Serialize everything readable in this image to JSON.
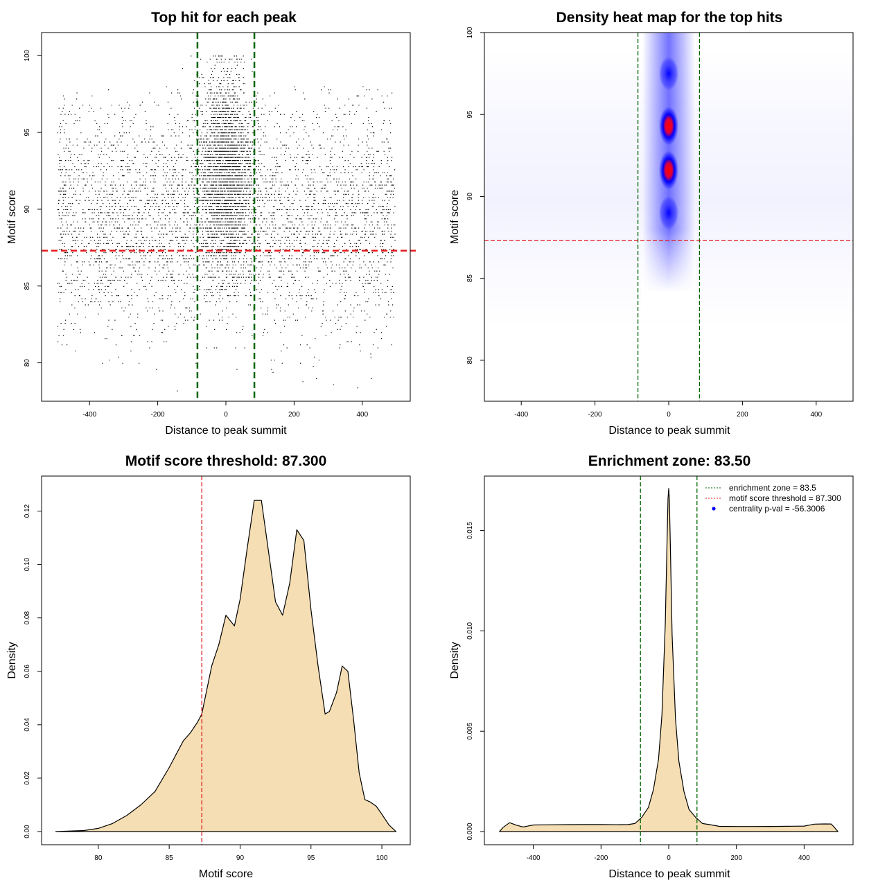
{
  "chart_data": [
    {
      "type": "scatter",
      "title": "Top hit for each peak",
      "xlabel": "Distance to peak summit",
      "ylabel": "Motif score",
      "xlim": [
        -500,
        500
      ],
      "ylim": [
        77.5,
        101.5
      ],
      "xticks": [
        -400,
        -200,
        0,
        200,
        400
      ],
      "yticks": [
        80,
        85,
        90,
        95,
        100
      ],
      "vlines": [
        -83.5,
        83.5
      ],
      "hline": 87.3,
      "vline_color": "#006400",
      "hline_color": "#e41a1c",
      "point_color": "#000000",
      "description_of_points": "dense scatter of roughly 15000 peaks; concentrated near distance 0 with scores 85-100, sparse uniform background across -500..500 with scores 78-98"
    },
    {
      "type": "heatmap",
      "title": "Density heat map for the top hits",
      "xlabel": "Distance to peak summit",
      "ylabel": "Motif score",
      "xlim": [
        -500,
        500
      ],
      "ylim": [
        77.5,
        100
      ],
      "xticks": [
        -400,
        -200,
        0,
        200,
        400
      ],
      "yticks": [
        80,
        85,
        90,
        95,
        100
      ],
      "vlines": [
        -83.5,
        83.5
      ],
      "hline": 87.3,
      "colors": [
        "#ffffff",
        "#0000ff",
        "#ff0000"
      ],
      "hotspots": [
        {
          "x": 0,
          "y": 97.5,
          "intensity": 0.7
        },
        {
          "x": 0,
          "y": 94.3,
          "intensity": 1.0
        },
        {
          "x": 0,
          "y": 91.6,
          "intensity": 0.95
        },
        {
          "x": 0,
          "y": 89.0,
          "intensity": 0.5
        }
      ]
    },
    {
      "type": "area",
      "title": "Motif score threshold: 87.300",
      "xlabel": "Motif score",
      "ylabel": "Density",
      "xlim": [
        76,
        102
      ],
      "ylim": [
        0,
        0.13
      ],
      "xticks": [
        80,
        85,
        90,
        95,
        100
      ],
      "yticks": [
        "0.00",
        "0.02",
        "0.04",
        "0.06",
        "0.08",
        "0.10",
        "0.12"
      ],
      "vline": 87.3,
      "fill": "#f5deb3",
      "x": [
        77,
        78,
        79,
        80,
        81,
        82,
        83,
        84,
        85,
        85.5,
        86,
        86.5,
        87,
        87.3,
        88,
        88.5,
        89,
        89.6,
        90,
        90.5,
        91,
        91.5,
        92,
        92.5,
        93,
        93.5,
        94,
        94.5,
        95,
        95.5,
        96,
        96.3,
        96.8,
        97.2,
        97.6,
        98,
        98.4,
        98.8,
        99.2,
        99.6,
        100,
        100.5,
        101
      ],
      "y": [
        0.0,
        0.0002,
        0.0004,
        0.0012,
        0.003,
        0.006,
        0.01,
        0.015,
        0.024,
        0.029,
        0.034,
        0.037,
        0.041,
        0.044,
        0.062,
        0.07,
        0.081,
        0.077,
        0.087,
        0.106,
        0.124,
        0.124,
        0.105,
        0.086,
        0.081,
        0.093,
        0.113,
        0.109,
        0.083,
        0.062,
        0.044,
        0.045,
        0.052,
        0.062,
        0.06,
        0.042,
        0.022,
        0.012,
        0.011,
        0.0095,
        0.0065,
        0.0025,
        0.0
      ]
    },
    {
      "type": "area",
      "title": "Enrichment zone: 83.50",
      "xlabel": "Distance to peak summit",
      "ylabel": "Density",
      "xlim": [
        -520,
        520
      ],
      "ylim": [
        0,
        0.0173
      ],
      "xticks": [
        -400,
        -200,
        0,
        200,
        400
      ],
      "yticks": [
        "0.000",
        "0.005",
        "0.010",
        "0.015"
      ],
      "vlines": [
        -83.5,
        83.5
      ],
      "fill": "#f5deb3",
      "x": [
        -500,
        -490,
        -470,
        -450,
        -430,
        -400,
        -350,
        -300,
        -250,
        -200,
        -150,
        -120,
        -100,
        -80,
        -60,
        -45,
        -30,
        -20,
        -10,
        -5,
        -2,
        0,
        2,
        5,
        10,
        20,
        30,
        45,
        60,
        80,
        100,
        120,
        150,
        200,
        250,
        300,
        350,
        400,
        430,
        460,
        480,
        490,
        500
      ],
      "y": [
        0.0,
        0.0002,
        0.0004,
        0.0003,
        0.0003,
        0.0003,
        0.0003,
        0.0003,
        0.0003,
        0.0003,
        0.0003,
        0.00035,
        0.0004,
        0.0007,
        0.0012,
        0.0021,
        0.0036,
        0.0058,
        0.0104,
        0.0145,
        0.0166,
        0.0171,
        0.0165,
        0.0142,
        0.0098,
        0.0056,
        0.0035,
        0.002,
        0.0011,
        0.0007,
        0.0004,
        0.00035,
        0.0003,
        0.0003,
        0.0003,
        0.0003,
        0.0003,
        0.0003,
        0.0003,
        0.0004,
        0.0003,
        0.0002,
        0.0
      ],
      "legend": [
        {
          "label": "enrichment zone = 83.5",
          "color": "#006400",
          "style": "dotted-line"
        },
        {
          "label": "motif score threshold = 87.300",
          "color": "#e41a1c",
          "style": "dotted-line"
        },
        {
          "label": "centrality p-val = -56.3006",
          "color": "#0000ff",
          "style": "point"
        }
      ],
      "legend_position": "top-right"
    }
  ]
}
